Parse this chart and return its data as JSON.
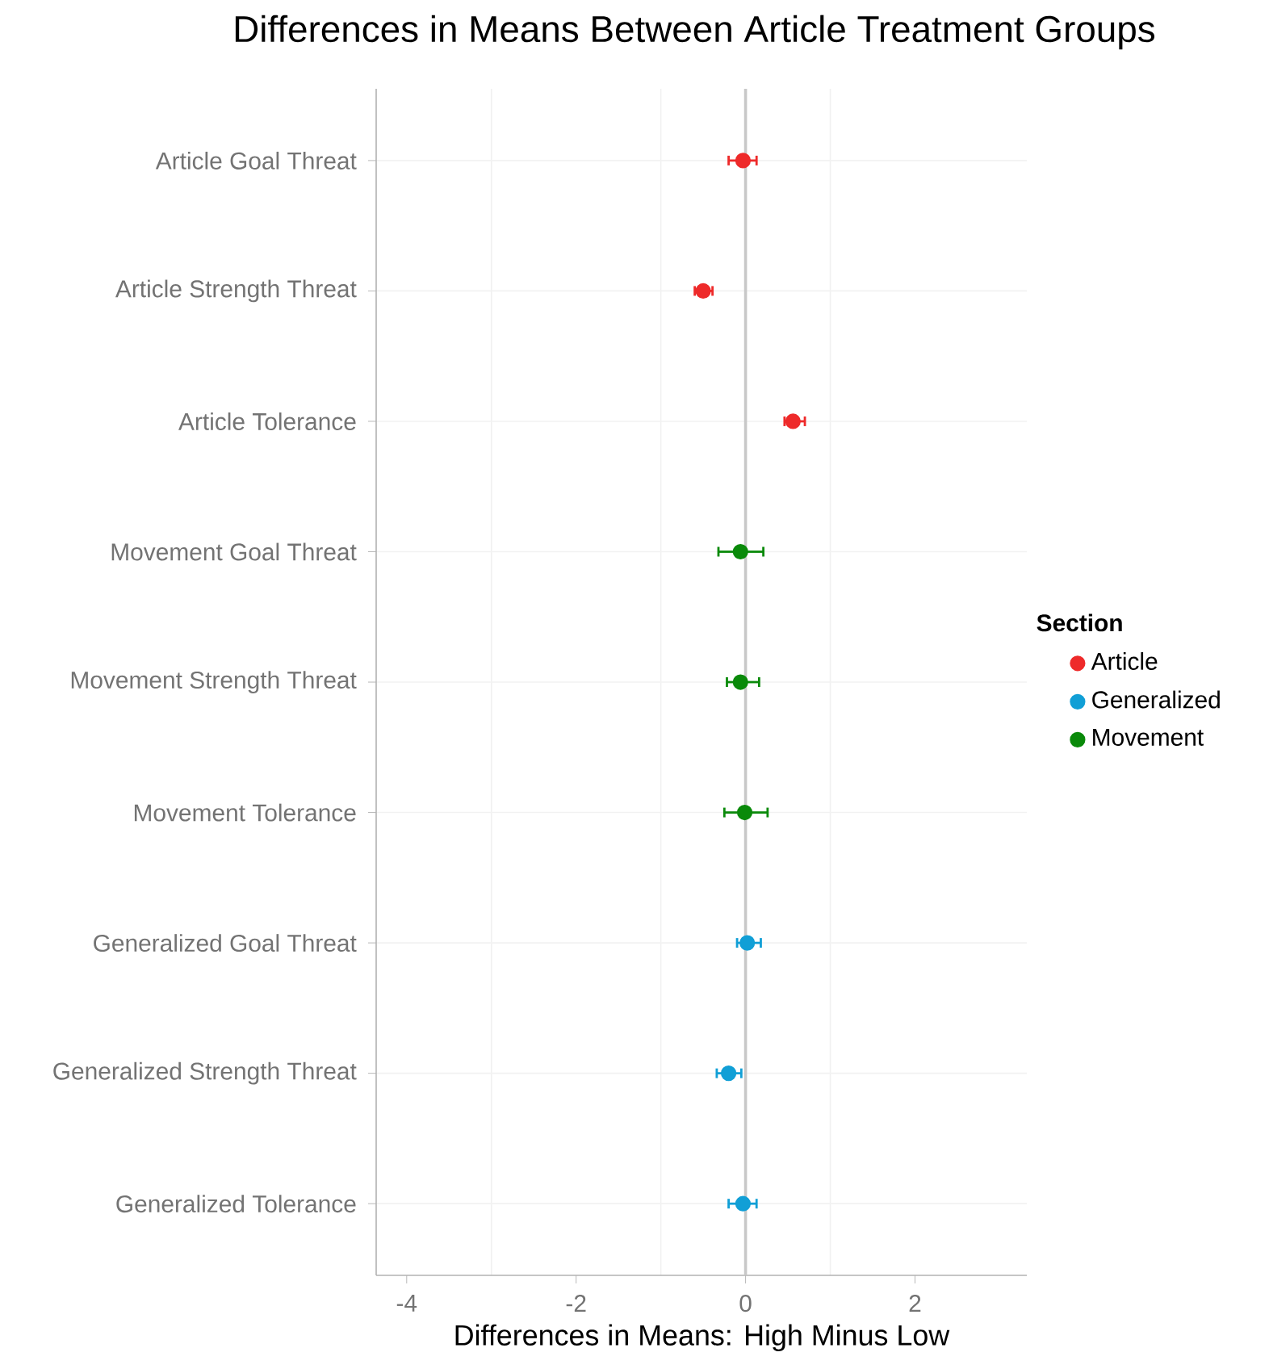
{
  "chart_data": {
    "type": "scatter",
    "title": "Differences in Means Between Article Treatment Groups",
    "xlabel": "Differences in Means: High Minus Low",
    "orientation": "horizontal",
    "categories": [
      "Article Goal Threat",
      "Article Strength Threat",
      "Article Tolerance",
      "Movement Goal Threat",
      "Movement Strength Threat",
      "Movement Tolerance",
      "Generalized Goal Threat",
      "Generalized Strength Threat",
      "Generalized Tolerance"
    ],
    "series": [
      {
        "name": "Article",
        "color": "#ee2a2a",
        "values": [
          -0.03,
          -0.5,
          0.56,
          null,
          null,
          null,
          null,
          null,
          null
        ],
        "errors": [
          [
            -0.2,
            0.13
          ],
          [
            -0.6,
            -0.39
          ],
          [
            0.46,
            0.7
          ],
          null,
          null,
          null,
          null,
          null,
          null
        ]
      },
      {
        "name": "Generalized",
        "color": "#119fd6",
        "values": [
          null,
          null,
          null,
          null,
          null,
          null,
          0.02,
          -0.2,
          -0.03
        ],
        "errors": [
          null,
          null,
          null,
          null,
          null,
          null,
          [
            -0.1,
            0.18
          ],
          [
            -0.34,
            -0.05
          ],
          [
            -0.2,
            0.13
          ]
        ]
      },
      {
        "name": "Movement",
        "color": "#0a8a0a",
        "values": [
          null,
          null,
          null,
          -0.06,
          -0.06,
          -0.01,
          null,
          null,
          null
        ],
        "errors": [
          null,
          null,
          null,
          [
            -0.32,
            0.21
          ],
          [
            -0.22,
            0.16
          ],
          [
            -0.25,
            0.26
          ],
          null,
          null,
          null
        ]
      }
    ],
    "legend_title": "Section",
    "legend": "right",
    "grid": true,
    "xlim": [
      -4.36,
      3.32
    ],
    "xticks": [
      -4,
      -2,
      0,
      2
    ],
    "ref_lines": [
      {
        "axis": "x",
        "value": 0,
        "color": "#c8c8c8"
      }
    ]
  }
}
